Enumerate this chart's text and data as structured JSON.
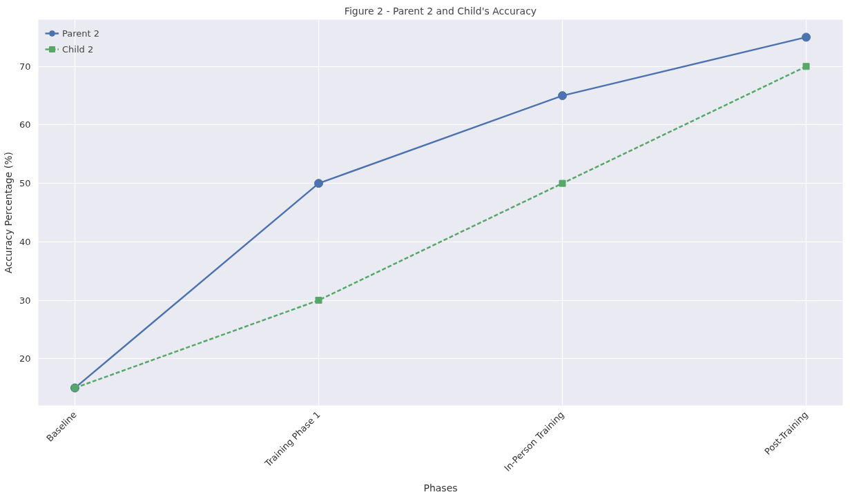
{
  "chart_data": {
    "type": "line",
    "title": "Figure 2 - Parent 2 and Child's Accuracy",
    "xlabel": "Phases",
    "ylabel": "Accuracy Percentage (%)",
    "categories": [
      "Baseline",
      "Training Phase 1",
      "In-Person Training",
      "Post-Training"
    ],
    "series": [
      {
        "name": "Parent 2",
        "color": "#4c72b0",
        "values": [
          15,
          50,
          65,
          75
        ],
        "marker": "circle",
        "line_style": "solid"
      },
      {
        "name": "Child 2",
        "color": "#55a868",
        "values": [
          15,
          30,
          50,
          70
        ],
        "marker": "square",
        "line_style": "dashed"
      }
    ],
    "ylim": [
      12,
      78
    ],
    "yticks": [
      20,
      30,
      40,
      50,
      60,
      70
    ],
    "grid": true,
    "legend": "top left"
  }
}
